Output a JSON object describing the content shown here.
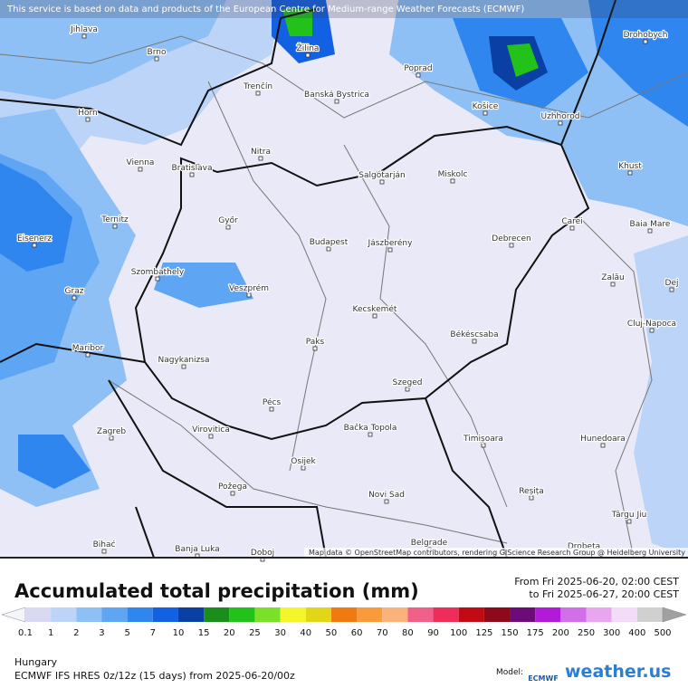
{
  "notice": "This service is based on data and products of the European Centre for Medium-range Weather Forecasts (ECMWF)",
  "attribution": "Map data © OpenStreetMap contributors, rendering GIScience Research Group @ Heidelberg University",
  "cities": [
    "Jihlava",
    "Brno",
    "Žilina",
    "Poprad",
    "Drohobych",
    "Trenčín",
    "Banská Bystrica",
    "Horn",
    "Košice",
    "Uzhhorod",
    "Nitra",
    "Vienna",
    "Bratislava",
    "Salgótarján",
    "Miskolc",
    "Khust",
    "Ternitz",
    "Győr",
    "Carei",
    "Baia Mare",
    "Eisenerz",
    "Budapest",
    "Jászberény",
    "Debrecen",
    "Szombathely",
    "Graz",
    "Veszprém",
    "Zalău",
    "Dej",
    "Kecskemét",
    "Cluj-Napoca",
    "Maribor",
    "Paks",
    "Békéscsaba",
    "Nagykanizsa",
    "Szeged",
    "Pécs",
    "Zagreb",
    "Virovitica",
    "Bačka Topola",
    "Timișoara",
    "Hunedoara",
    "Osijek",
    "Požega",
    "Novi Sad",
    "Reșița",
    "Târgu Jiu",
    "Bihać",
    "Banja Luka",
    "Doboj",
    "Belgrade",
    "Drobeta"
  ],
  "footer": {
    "title": "Accumulated total precipitation (mm)",
    "from": "From Fri 2025-06-20, 02:00 CEST",
    "to": "to Fri 2025-06-27, 20:00 CEST",
    "region": "Hungary",
    "model_run": "ECMWF IFS HRES 0z/12z (15 days) from 2025-06-20/00z",
    "model_label": "Model:",
    "model_logo": "ECMWF",
    "brand": "weather.us"
  },
  "legend": {
    "labels": [
      0.1,
      1,
      2,
      3,
      5,
      7,
      10,
      15,
      20,
      25,
      30,
      40,
      50,
      60,
      70,
      80,
      90,
      100,
      125,
      150,
      175,
      200,
      250,
      300,
      400,
      500
    ],
    "colors": [
      "#d9d9f3",
      "#bcd4f8",
      "#8ec0f6",
      "#5ea5f3",
      "#2f86ef",
      "#1261e2",
      "#0a3fa3",
      "#1a8e1a",
      "#23c21b",
      "#7be028",
      "#f5f52c",
      "#e1d718",
      "#f07a0f",
      "#f99a3b",
      "#fbb27a",
      "#f06088",
      "#ee2d5a",
      "#c20a15",
      "#8e0a1a",
      "#6d0c79",
      "#b11ad8",
      "#d36ee9",
      "#e8a6ef",
      "#f3dcf7",
      "#d0d0d0"
    ],
    "low_color": "#f4f4fb",
    "high_color": "#a0a0a0"
  }
}
